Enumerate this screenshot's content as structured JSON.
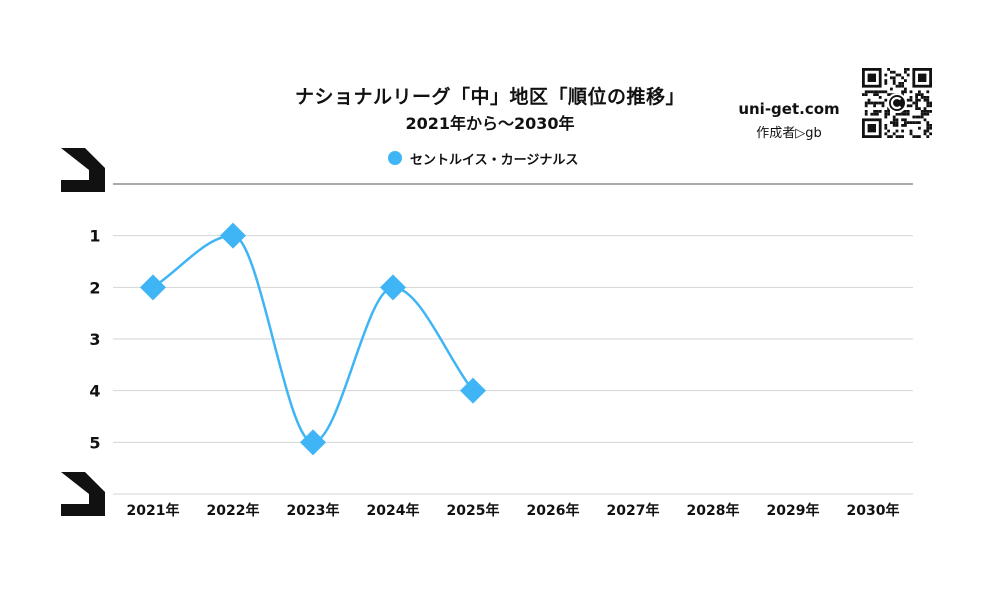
{
  "header": {
    "site_url": "uni-get.com",
    "author": "作成者▷gb",
    "qr_icon": "qr-code-icon"
  },
  "colors": {
    "series": "#3fb5f5",
    "grid": "#d4d4d4",
    "axis": "#555555",
    "text": "#111111"
  },
  "chart_data": {
    "type": "line",
    "title": "ナショナルリーグ「中」地区「順位の推移」",
    "subtitle": "2021年から〜2030年",
    "x": [
      "2021年",
      "2022年",
      "2023年",
      "2024年",
      "2025年",
      "2026年",
      "2027年",
      "2028年",
      "2029年",
      "2030年"
    ],
    "series": [
      {
        "name": "セントルイス・カージナルス",
        "values": [
          2,
          1,
          5,
          2,
          4,
          null,
          null,
          null,
          null,
          null
        ]
      }
    ],
    "y_ticks": [
      1,
      2,
      3,
      4,
      5
    ],
    "ylim": [
      0,
      6
    ],
    "y_reversed": true,
    "grid": true,
    "smooth": true,
    "marker": "diamond",
    "legend_position": "top"
  }
}
